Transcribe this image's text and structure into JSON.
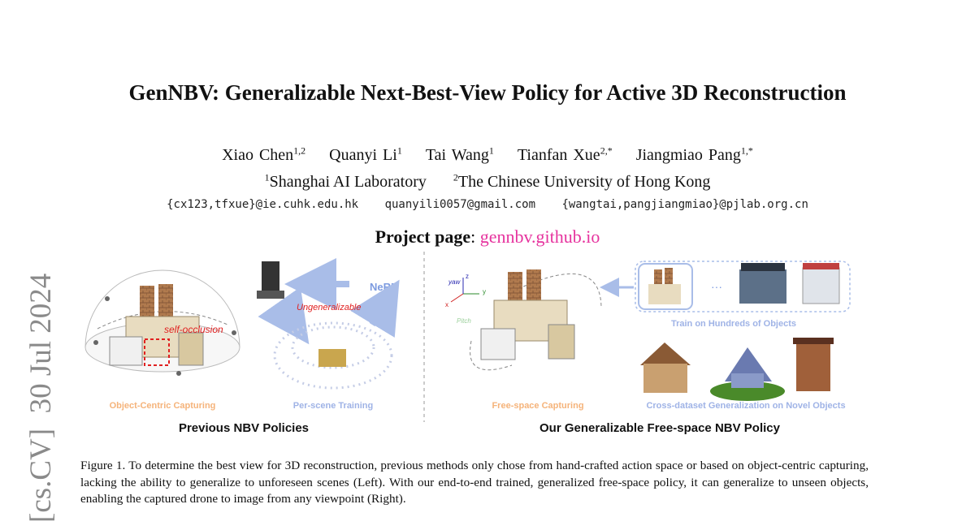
{
  "stamp": {
    "text": "[cs.CV]  30 Jul 2024"
  },
  "paper": {
    "title": "GenNBV: Generalizable Next-Best-View Policy for Active 3D Reconstruction",
    "authors": [
      {
        "name": "Xiao Chen",
        "sup": "1,2"
      },
      {
        "name": "Quanyi Li",
        "sup": "1"
      },
      {
        "name": "Tai Wang",
        "sup": "1"
      },
      {
        "name": "Tianfan Xue",
        "sup": "2,*"
      },
      {
        "name": "Jiangmiao Pang",
        "sup": "1,*"
      }
    ],
    "affiliations": [
      {
        "sup": "1",
        "name": "Shanghai AI Laboratory"
      },
      {
        "sup": "2",
        "name": "The Chinese University of Hong Kong"
      }
    ],
    "emails": [
      "{cx123,tfxue}@ie.cuhk.edu.hk",
      "quanyili0057@gmail.com",
      "{wangtai,pangjiangmiao}@pjlab.org.cn"
    ],
    "project_label": "Project page",
    "project_sep": ":",
    "project_url": "gennbv.github.io"
  },
  "figure": {
    "labels": {
      "self_occlusion": "self-occlusion",
      "ungeneralizable": "Ungeneralizable",
      "nerf": "NeRF",
      "object_centric": "Object-Centric Capturing",
      "per_scene": "Per-scene Training",
      "previous": "Previous NBV Policies",
      "free_space": "Free-space Capturing",
      "train_hundreds": "Train on Hundreds of Objects",
      "cross_dataset": "Cross-dataset Generalization on Novel Objects",
      "ours": "Our Generalizable Free-space NBV Policy",
      "ellipsis": "···",
      "axis_yaw": "yaw",
      "axis_pitch": "Pitch",
      "axis_x": "x",
      "axis_y": "y",
      "axis_z": "z"
    },
    "colors": {
      "orange": "#f5b37a",
      "blue_label": "#9fb3e6",
      "red": "#e02020",
      "nerf_blue": "#7d9be0",
      "arrow_blue": "#a9bde8",
      "pink": "#e6339e"
    }
  },
  "caption": {
    "text": "Figure 1.  To determine the best view for 3D reconstruction, previous methods only chose from hand-crafted action space or based on object-centric capturing, lacking the ability to generalize to unforeseen scenes (Left). With our end-to-end trained, generalized free-space policy, it can generalize to unseen objects, enabling the captured drone to image from any viewpoint (Right)."
  }
}
